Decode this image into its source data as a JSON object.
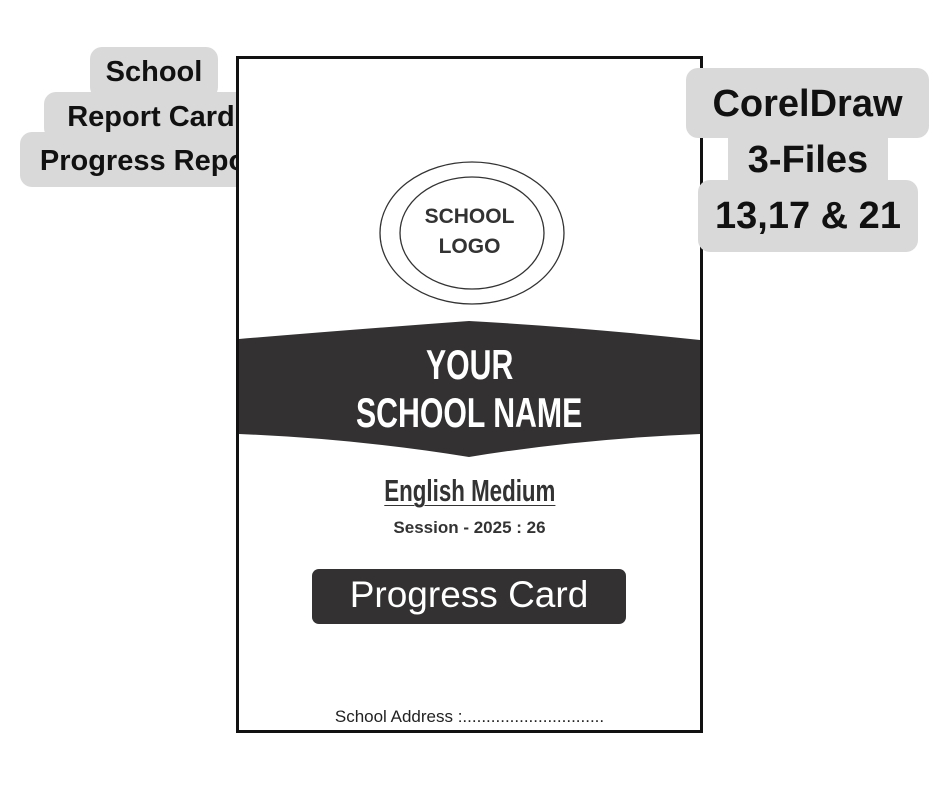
{
  "left_tag": {
    "lines": [
      "School",
      "Report Card",
      "Progress Report"
    ]
  },
  "right_tag": {
    "lines": [
      "CorelDraw",
      "3-Files",
      "13,17 & 21"
    ]
  },
  "card": {
    "logo_text": [
      "SCHOOL",
      "LOGO"
    ],
    "school_name": [
      "YOUR",
      "SCHOOL NAME"
    ],
    "medium": "English Medium",
    "session": "Session - 2025 : 26",
    "title": "Progress Card",
    "address": "School Address :.............................."
  },
  "colors": {
    "tag_bg": "#d9d9d9",
    "dark": "#333132",
    "border": "#111111"
  }
}
